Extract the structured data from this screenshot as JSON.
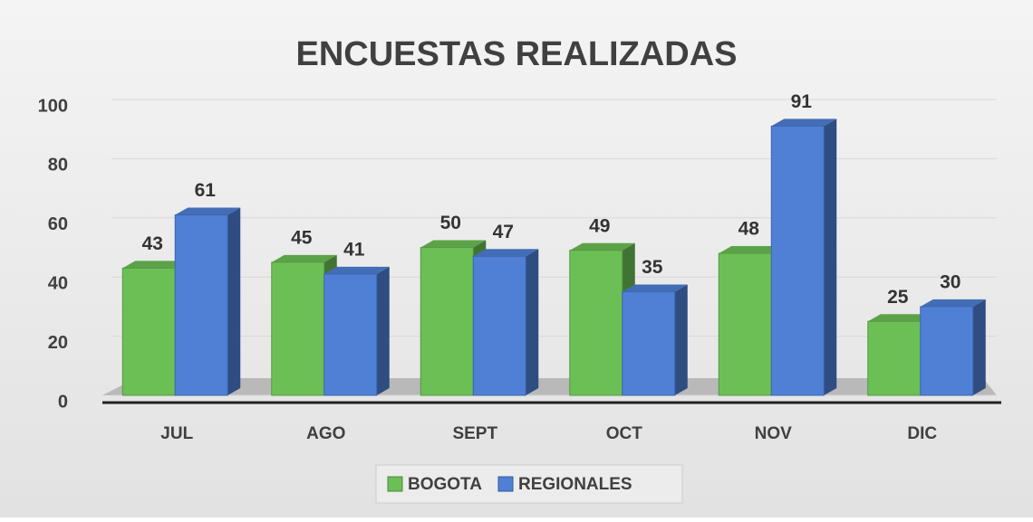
{
  "chart_data": {
    "type": "bar",
    "title": "ENCUESTAS REALIZADAS",
    "categories": [
      "JUL",
      "AGO",
      "SEPT",
      "OCT",
      "NOV",
      "DIC"
    ],
    "series": [
      {
        "name": "BOGOTA",
        "color": "#6cbf55",
        "values": [
          43,
          45,
          50,
          49,
          48,
          25
        ]
      },
      {
        "name": "REGIONALES",
        "color": "#4f80d6",
        "values": [
          61,
          41,
          47,
          35,
          91,
          30
        ]
      }
    ],
    "ylim": [
      0,
      100
    ],
    "yticks": [
      0,
      20,
      40,
      60,
      80,
      100
    ],
    "grid": true,
    "legend": "bottom"
  }
}
